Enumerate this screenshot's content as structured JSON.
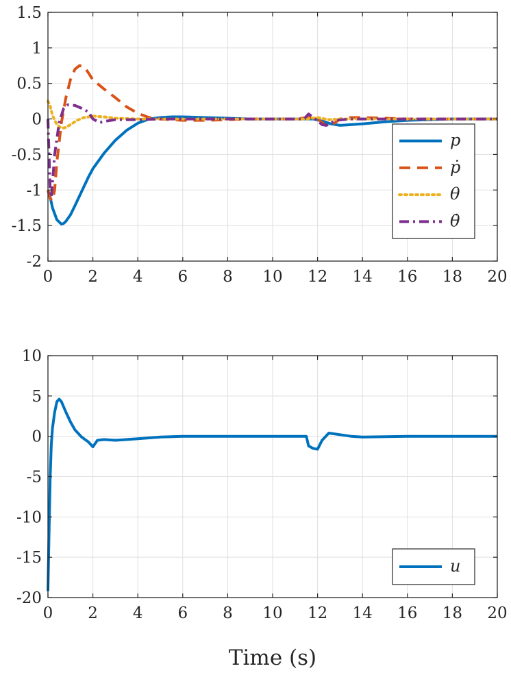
{
  "chart_data": [
    {
      "type": "line",
      "xlabel": "",
      "ylabel": "",
      "xlim": [
        0,
        20
      ],
      "ylim": [
        -2,
        1.5
      ],
      "xticks": [
        0,
        2,
        4,
        6,
        8,
        10,
        12,
        14,
        16,
        18,
        20
      ],
      "xtick_labels": [
        "0",
        "2",
        "4",
        "6",
        "8",
        "10",
        "12",
        "14",
        "16",
        "18",
        "20"
      ],
      "yticks": [
        1.5,
        1,
        0.5,
        0,
        -0.5,
        -1,
        -1.5,
        -2
      ],
      "ytick_labels": [
        "1.5",
        "1",
        "0.5",
        "0",
        "-0.5",
        "-1",
        "-1.5",
        "-2"
      ],
      "grid": true,
      "legend_position": "center-right",
      "series": [
        {
          "name": "p",
          "color": "#0072BD",
          "style": "solid",
          "x": [
            0,
            0.1,
            0.2,
            0.4,
            0.6,
            0.7,
            0.8,
            1.0,
            1.2,
            1.5,
            1.8,
            2.0,
            2.5,
            3.0,
            3.5,
            4.0,
            4.5,
            5.0,
            5.5,
            6.0,
            7.0,
            8.0,
            9.0,
            10.0,
            11.0,
            11.8,
            12.2,
            12.6,
            13.0,
            14.0,
            15.0,
            16.0,
            17.0,
            18.0,
            20.0
          ],
          "y": [
            -1.0,
            -1.1,
            -1.25,
            -1.42,
            -1.48,
            -1.47,
            -1.44,
            -1.35,
            -1.22,
            -1.02,
            -0.82,
            -0.7,
            -0.48,
            -0.3,
            -0.16,
            -0.06,
            0.0,
            0.02,
            0.03,
            0.03,
            0.02,
            0.01,
            0.0,
            0.0,
            0.0,
            0.0,
            -0.03,
            -0.07,
            -0.09,
            -0.07,
            -0.04,
            -0.02,
            -0.01,
            0.0,
            0.0
          ]
        },
        {
          "name": "ṗ",
          "color": "#D95319",
          "style": "dashed",
          "x": [
            0,
            0.1,
            0.2,
            0.3,
            0.4,
            0.6,
            0.8,
            1.0,
            1.2,
            1.4,
            1.6,
            1.8,
            2.0,
            2.5,
            3.0,
            3.5,
            4.0,
            4.5,
            5.0,
            6.0,
            7.0,
            8.0,
            9.0,
            10.0,
            11.0,
            11.6,
            12.0,
            12.4,
            12.7,
            13.0,
            13.5,
            14.0,
            15.0,
            16.0,
            17.0,
            20.0
          ],
          "y": [
            -1.0,
            -1.12,
            -1.15,
            -1.0,
            -0.6,
            -0.05,
            0.3,
            0.55,
            0.7,
            0.75,
            0.74,
            0.65,
            0.55,
            0.42,
            0.3,
            0.17,
            0.08,
            0.02,
            0.0,
            -0.02,
            -0.02,
            -0.01,
            0.0,
            0.0,
            0.0,
            0.02,
            0.0,
            -0.1,
            -0.07,
            0.0,
            0.02,
            0.02,
            0.01,
            0.0,
            0.0,
            0.0
          ]
        },
        {
          "name": "θ",
          "color": "#EDB120",
          "style": "dotted",
          "x": [
            0,
            0.1,
            0.2,
            0.4,
            0.6,
            0.8,
            1.0,
            1.3,
            1.6,
            2.0,
            2.5,
            3.0,
            4.0,
            5.0,
            6.0,
            8.0,
            10.0,
            11.5,
            12.0,
            12.5,
            13.0,
            14.0,
            20.0
          ],
          "y": [
            0.25,
            0.18,
            0.05,
            -0.08,
            -0.13,
            -0.12,
            -0.08,
            -0.02,
            0.02,
            0.04,
            0.03,
            0.01,
            0.0,
            0.0,
            0.0,
            0.0,
            0.0,
            0.0,
            0.02,
            -0.01,
            0.0,
            0.0,
            0.0
          ]
        },
        {
          "name": "θ̇",
          "color": "#7E2F8E",
          "style": "dashdot",
          "x": [
            0,
            0.05,
            0.1,
            0.15,
            0.2,
            0.3,
            0.5,
            0.7,
            0.9,
            1.2,
            1.5,
            1.8,
            2.0,
            2.3,
            2.6,
            3.0,
            4.0,
            5.0,
            6.0,
            8.0,
            10.0,
            11.4,
            11.6,
            11.9,
            12.2,
            12.4,
            12.8,
            13.5,
            14.0,
            20.0
          ],
          "y": [
            0.0,
            -0.5,
            -1.0,
            -1.1,
            -0.9,
            -0.5,
            -0.05,
            0.15,
            0.2,
            0.19,
            0.15,
            0.1,
            0.0,
            -0.05,
            -0.03,
            -0.01,
            -0.01,
            0.0,
            0.0,
            0.0,
            0.0,
            0.0,
            0.07,
            0.0,
            -0.08,
            -0.09,
            -0.02,
            0.0,
            0.0,
            0.0
          ]
        }
      ]
    },
    {
      "type": "line",
      "xlabel": "Time (s)",
      "ylabel": "",
      "xlim": [
        0,
        20
      ],
      "ylim": [
        -20,
        10
      ],
      "xticks": [
        0,
        2,
        4,
        6,
        8,
        10,
        12,
        14,
        16,
        18,
        20
      ],
      "xtick_labels": [
        "0",
        "2",
        "4",
        "6",
        "8",
        "10",
        "12",
        "14",
        "16",
        "18",
        "20"
      ],
      "yticks": [
        10,
        5,
        0,
        -5,
        -10,
        -15,
        -20
      ],
      "ytick_labels": [
        "10",
        "5",
        "0",
        "-5",
        "-10",
        "-15",
        "-20"
      ],
      "grid": true,
      "legend_position": "bottom-right",
      "series": [
        {
          "name": "u",
          "color": "#0072BD",
          "style": "solid",
          "x": [
            0,
            0.05,
            0.1,
            0.15,
            0.2,
            0.3,
            0.4,
            0.5,
            0.6,
            0.8,
            1.0,
            1.2,
            1.5,
            1.8,
            2.0,
            2.2,
            2.5,
            3.0,
            3.5,
            4.0,
            4.5,
            5.0,
            6.0,
            8.0,
            10.0,
            11.0,
            11.5,
            11.6,
            11.8,
            12.0,
            12.2,
            12.5,
            13.0,
            13.5,
            14.0,
            16.0,
            20.0
          ],
          "y": [
            -19.2,
            -12.0,
            -5.0,
            -1.0,
            1.0,
            3.0,
            4.3,
            4.6,
            4.3,
            3.0,
            1.8,
            0.8,
            -0.1,
            -0.7,
            -1.3,
            -0.5,
            -0.4,
            -0.5,
            -0.4,
            -0.3,
            -0.2,
            -0.1,
            0.0,
            0.0,
            0.0,
            0.0,
            0.0,
            -1.2,
            -1.5,
            -1.6,
            -0.5,
            0.4,
            0.2,
            0.0,
            -0.1,
            0.0,
            0.0
          ]
        }
      ]
    }
  ]
}
